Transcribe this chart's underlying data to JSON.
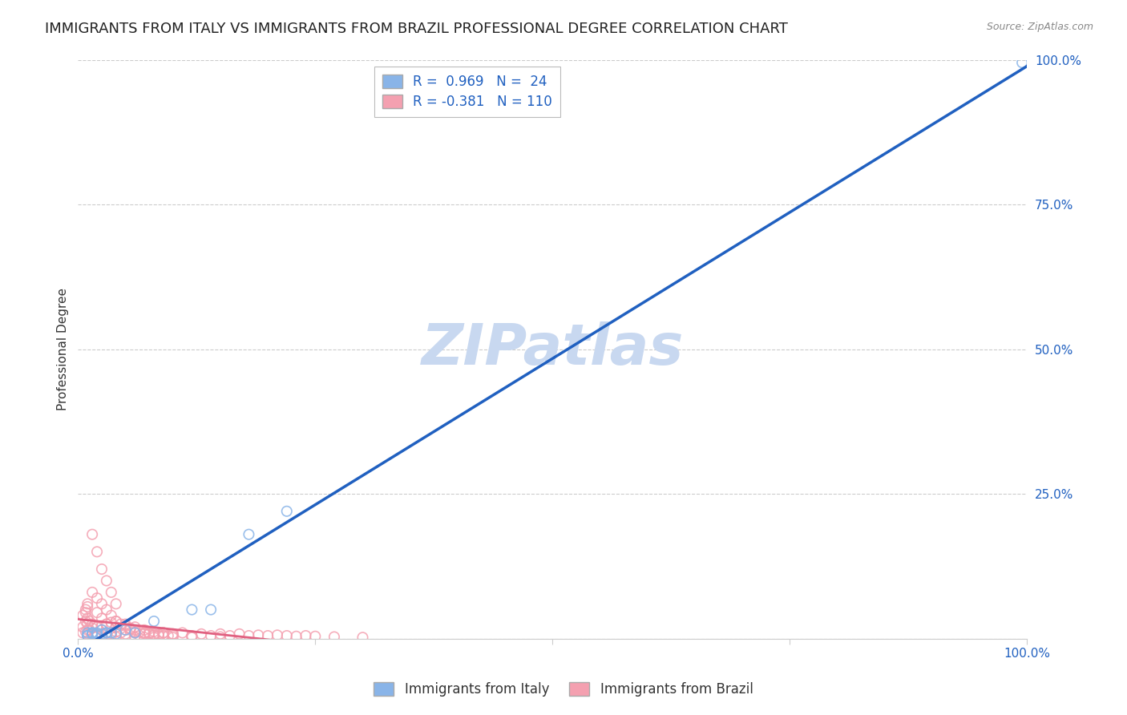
{
  "title": "IMMIGRANTS FROM ITALY VS IMMIGRANTS FROM BRAZIL PROFESSIONAL DEGREE CORRELATION CHART",
  "source": "Source: ZipAtlas.com",
  "ylabel": "Professional Degree",
  "italy_R": 0.969,
  "italy_N": 24,
  "brazil_R": -0.381,
  "brazil_N": 110,
  "italy_color": "#89b4e8",
  "brazil_color": "#f4a0b0",
  "italy_line_color": "#2060c0",
  "brazil_line_color": "#e06080",
  "watermark": "ZIPatlas",
  "xlim": [
    0,
    1
  ],
  "ylim": [
    0,
    1
  ],
  "xticks": [
    0.0,
    0.25,
    0.5,
    0.75,
    1.0
  ],
  "yticks": [
    0.0,
    0.25,
    0.5,
    0.75,
    1.0
  ],
  "xticklabels": [
    "0.0%",
    "",
    "",
    "",
    "100.0%"
  ],
  "yticklabels": [
    "",
    "25.0%",
    "50.0%",
    "75.0%",
    "100.0%"
  ],
  "background_color": "#ffffff",
  "grid_color": "#cccccc",
  "italy_scatter_x": [
    0.02,
    0.01,
    0.015,
    0.025,
    0.03,
    0.01,
    0.02,
    0.015,
    0.035,
    0.04,
    0.05,
    0.06,
    0.08,
    0.12,
    0.22,
    0.18,
    0.14,
    0.03,
    0.025,
    0.02,
    0.015,
    0.01,
    0.01,
    0.995
  ],
  "italy_scatter_y": [
    0.01,
    0.005,
    0.01,
    0.015,
    0.01,
    0.005,
    0.008,
    0.01,
    0.01,
    0.008,
    0.015,
    0.01,
    0.03,
    0.05,
    0.22,
    0.18,
    0.05,
    0.01,
    0.008,
    0.005,
    0.008,
    0.01,
    0.005,
    0.995
  ],
  "brazil_scatter_x": [
    0.005,
    0.008,
    0.01,
    0.012,
    0.015,
    0.018,
    0.02,
    0.025,
    0.03,
    0.035,
    0.04,
    0.045,
    0.05,
    0.055,
    0.06,
    0.065,
    0.07,
    0.075,
    0.08,
    0.085,
    0.09,
    0.095,
    0.1,
    0.11,
    0.12,
    0.13,
    0.14,
    0.15,
    0.16,
    0.17,
    0.18,
    0.19,
    0.2,
    0.21,
    0.22,
    0.23,
    0.24,
    0.25,
    0.27,
    0.3,
    0.005,
    0.008,
    0.01,
    0.015,
    0.02,
    0.025,
    0.03,
    0.035,
    0.04,
    0.05,
    0.06,
    0.07,
    0.08,
    0.09,
    0.1,
    0.015,
    0.02,
    0.025,
    0.03,
    0.035,
    0.04,
    0.01,
    0.012,
    0.015,
    0.008,
    0.01,
    0.02,
    0.025,
    0.03,
    0.04,
    0.05,
    0.06,
    0.07,
    0.08,
    0.09,
    0.1,
    0.12,
    0.15,
    0.005,
    0.008,
    0.01,
    0.015,
    0.02,
    0.025,
    0.03,
    0.035,
    0.04,
    0.045,
    0.05,
    0.055,
    0.06,
    0.065,
    0.07,
    0.075,
    0.08,
    0.085,
    0.09,
    0.01,
    0.015,
    0.02,
    0.025,
    0.03,
    0.035,
    0.04,
    0.05,
    0.06,
    0.07,
    0.08,
    0.1,
    0.12
  ],
  "brazil_scatter_y": [
    0.02,
    0.03,
    0.025,
    0.015,
    0.01,
    0.008,
    0.02,
    0.015,
    0.01,
    0.008,
    0.012,
    0.01,
    0.008,
    0.015,
    0.01,
    0.005,
    0.008,
    0.01,
    0.005,
    0.008,
    0.01,
    0.005,
    0.008,
    0.01,
    0.005,
    0.008,
    0.005,
    0.008,
    0.005,
    0.008,
    0.005,
    0.006,
    0.005,
    0.006,
    0.005,
    0.004,
    0.005,
    0.004,
    0.003,
    0.002,
    0.04,
    0.05,
    0.06,
    0.08,
    0.07,
    0.06,
    0.05,
    0.04,
    0.03,
    0.025,
    0.02,
    0.015,
    0.012,
    0.01,
    0.008,
    0.18,
    0.15,
    0.12,
    0.1,
    0.08,
    0.06,
    0.035,
    0.03,
    0.025,
    0.045,
    0.055,
    0.045,
    0.035,
    0.025,
    0.02,
    0.015,
    0.012,
    0.01,
    0.008,
    0.006,
    0.005,
    0.004,
    0.003,
    0.01,
    0.012,
    0.015,
    0.018,
    0.02,
    0.022,
    0.025,
    0.028,
    0.03,
    0.025,
    0.022,
    0.018,
    0.015,
    0.012,
    0.01,
    0.008,
    0.006,
    0.005,
    0.004,
    0.008,
    0.006,
    0.005,
    0.004,
    0.003,
    0.004,
    0.003,
    0.003,
    0.002,
    0.002,
    0.002,
    0.002,
    0.002
  ],
  "title_fontsize": 13,
  "axis_label_fontsize": 11,
  "tick_fontsize": 11,
  "legend_fontsize": 12,
  "watermark_fontsize": 52,
  "watermark_color": "#c8d8f0",
  "marker_size": 80,
  "marker_linewidth": 1.2
}
